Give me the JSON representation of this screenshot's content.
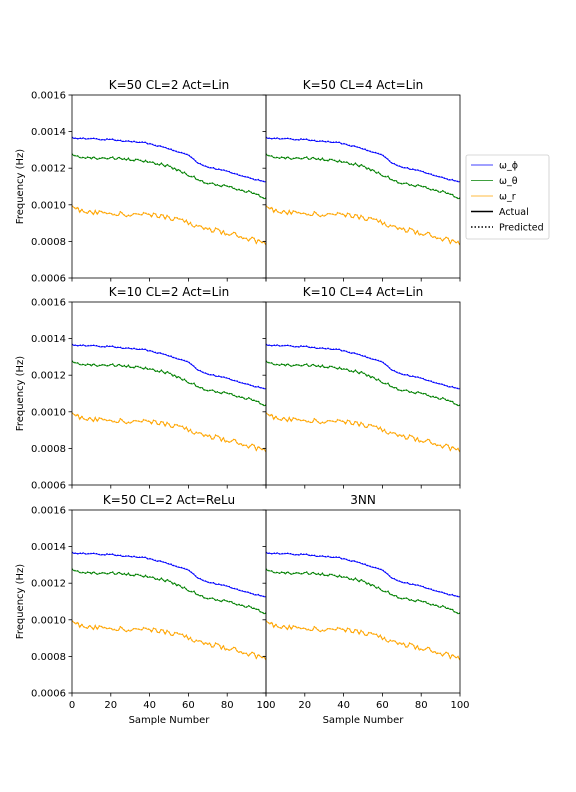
{
  "chart_data": {
    "type": "line",
    "ylabel": "Frequency (Hz)",
    "xlabel": "Sample Number",
    "xlim": [
      0,
      100
    ],
    "ylim": [
      0.0006,
      0.0016
    ],
    "xticks": [
      "0",
      "20",
      "40",
      "60",
      "80",
      "100"
    ],
    "yticks": [
      "0.0006",
      "0.0008",
      "0.0010",
      "0.0012",
      "0.0014",
      "0.0016"
    ],
    "legend": {
      "placement": "right",
      "entries": [
        {
          "label": "ω_ϕ",
          "color": "#0000ff",
          "kind": "series"
        },
        {
          "label": "ω_θ",
          "color": "#008000",
          "kind": "series"
        },
        {
          "label": "ω_r",
          "color": "#ffa500",
          "kind": "series"
        },
        {
          "label": "Actual",
          "color": "#000000",
          "kind": "solid"
        },
        {
          "label": "Predicted",
          "color": "#000000",
          "kind": "dotted"
        }
      ]
    },
    "series_styles": [
      {
        "key": "omega_phi",
        "color": "#0000ff"
      },
      {
        "key": "omega_theta",
        "color": "#008000"
      },
      {
        "key": "omega_r",
        "color": "#ffa500"
      }
    ],
    "series": {
      "x": [
        0,
        10,
        20,
        30,
        40,
        50,
        60,
        65,
        70,
        80,
        90,
        100
      ],
      "omega_phi": [
        0.001365,
        0.00136,
        0.001355,
        0.001345,
        0.001335,
        0.001305,
        0.001275,
        0.001225,
        0.001205,
        0.001185,
        0.00115,
        0.001125
      ],
      "omega_theta": [
        0.00127,
        0.001255,
        0.001255,
        0.001245,
        0.001235,
        0.00121,
        0.001165,
        0.001135,
        0.001115,
        0.0011,
        0.001075,
        0.001035
      ],
      "omega_r": [
        0.00098,
        0.00096,
        0.000955,
        0.000945,
        0.00095,
        0.000925,
        0.0009,
        0.00088,
        0.00087,
        0.000845,
        0.00082,
        0.00078
      ]
    },
    "panels": [
      {
        "title": "K=50 CL=2 Act=Lin"
      },
      {
        "title": "K=50 CL=4 Act=Lin"
      },
      {
        "title": "K=10 CL=2 Act=Lin"
      },
      {
        "title": "K=10 CL=4 Act=Lin"
      },
      {
        "title": "K=50 CL=2 Act=ReLu"
      },
      {
        "title": "3NN"
      }
    ]
  }
}
